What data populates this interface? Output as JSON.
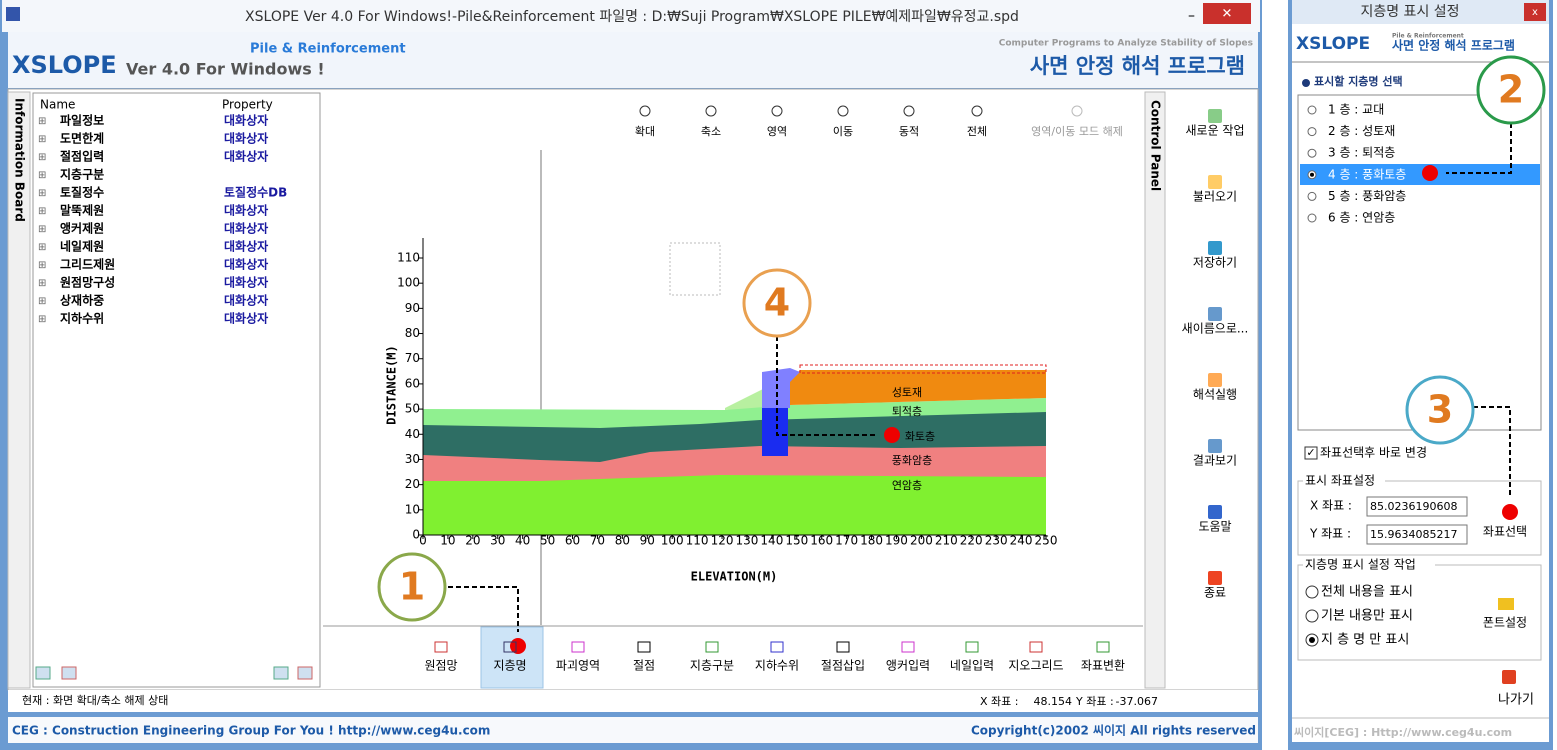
{
  "window": {
    "title": "XSLOPE Ver 4.0 For Windows!-Pile&Reinforcement  파일명 : D:₩Suji Program₩XSLOPE PILE₩예제파일₩유정교.spd",
    "header": {
      "brand": "XSLOPE",
      "version": "Ver 4.0 For Windows !",
      "edition": "Pile & Reinforcement",
      "tagline": "Computer Programs to Analyze Stability of Slopes",
      "program": "사면 안정 해석 프로그램"
    }
  },
  "info_board": {
    "label": "Information Board",
    "columns": [
      "Name",
      "Property"
    ],
    "rows": [
      {
        "name": "파일정보",
        "property": "대화상자"
      },
      {
        "name": "도면한계",
        "property": "대화상자"
      },
      {
        "name": "절점입력",
        "property": "대화상자"
      },
      {
        "name": "지층구분"
      },
      {
        "name": "토질정수",
        "property": "토질정수DB"
      },
      {
        "name": "말뚝제원",
        "property": "대화상자"
      },
      {
        "name": "앵커제원",
        "property": "대화상자"
      },
      {
        "name": "네일제원",
        "property": "대화상자"
      },
      {
        "name": "그리드제원",
        "property": "대화상자"
      },
      {
        "name": "원점망구성",
        "property": "대화상자"
      },
      {
        "name": "상재하중",
        "property": "대화상자"
      },
      {
        "name": "지하수위",
        "property": "대화상자"
      }
    ]
  },
  "view_toolbar": [
    "확대",
    "축소",
    "영역",
    "이동",
    "동적",
    "전체",
    "영역/이동 모드 해제"
  ],
  "chart": {
    "y_label": "DISTANCE(M)",
    "x_label": "ELEVATION(M)",
    "xlim": [
      0,
      250
    ],
    "ylim": [
      0,
      110
    ],
    "xticks": [
      0,
      10,
      20,
      30,
      40,
      50,
      60,
      70,
      80,
      90,
      100,
      110,
      120,
      130,
      140,
      150,
      160,
      170,
      180,
      190,
      200,
      210,
      220,
      230,
      240,
      250
    ],
    "yticks": [
      0,
      10,
      20,
      30,
      40,
      50,
      60,
      70,
      80,
      90,
      100,
      110
    ],
    "layer_labels": [
      "성토재",
      "퇴적층",
      "화토층",
      "풍화암층",
      "연암층"
    ]
  },
  "bottom_toolbar": [
    "원점망",
    "지층명",
    "파괴영역",
    "절점",
    "지층구분",
    "지하수위",
    "절점삽입",
    "앵커입력",
    "네일입력",
    "지오그리드",
    "좌표변환"
  ],
  "control_panel": {
    "label": "Control Panel",
    "buttons": [
      "새로운 작업",
      "불러오기",
      "저장하기",
      "새이름으로...",
      "해석실행",
      "결과보기",
      "도움말",
      "종료"
    ]
  },
  "status": {
    "message": "현재 : 화면 확대/축소 해제 상태",
    "x_label": "X 좌표 :",
    "x_value": "48.154",
    "y_label": "Y 좌표 :",
    "y_value": "-37.067"
  },
  "footer": {
    "left": "CEG : Construction Engineering Group For You ! http://www.ceg4u.com",
    "right": "Copyright(c)2002 씨이지 All rights reserved"
  },
  "dialog": {
    "title": "지층명 표시 설정",
    "brand": "XSLOPE",
    "edition": "Pile & Reinforcement",
    "program": "사면 안정 해석 프로그램",
    "section": "표시할 지층명 선택",
    "layers": [
      "1 층 : 교대",
      "2 층 : 성토재",
      "3 층 : 퇴적층",
      "4 층 : 풍화토층",
      "5 층 : 풍화암층",
      "6 층 : 연암층"
    ],
    "checkbox": "좌표선택후 바로 변경",
    "coord_group": "표시 좌표설정",
    "x_label": "X 좌표 :",
    "x_value": "85.0236190608",
    "y_label": "Y 좌표 :",
    "y_value": "15.9634085217",
    "pick": "좌표선택",
    "display_group": "지층명 표시 설정 작업",
    "options": [
      "전체 내용을 표시",
      "기본 내용만 표시",
      "지 층 명 만 표시"
    ],
    "font": "폰트설정",
    "exit": "나가기",
    "footer": "씨이지[CEG] : Http://www.ceg4u.com"
  },
  "callouts": [
    "1",
    "2",
    "3",
    "4"
  ]
}
